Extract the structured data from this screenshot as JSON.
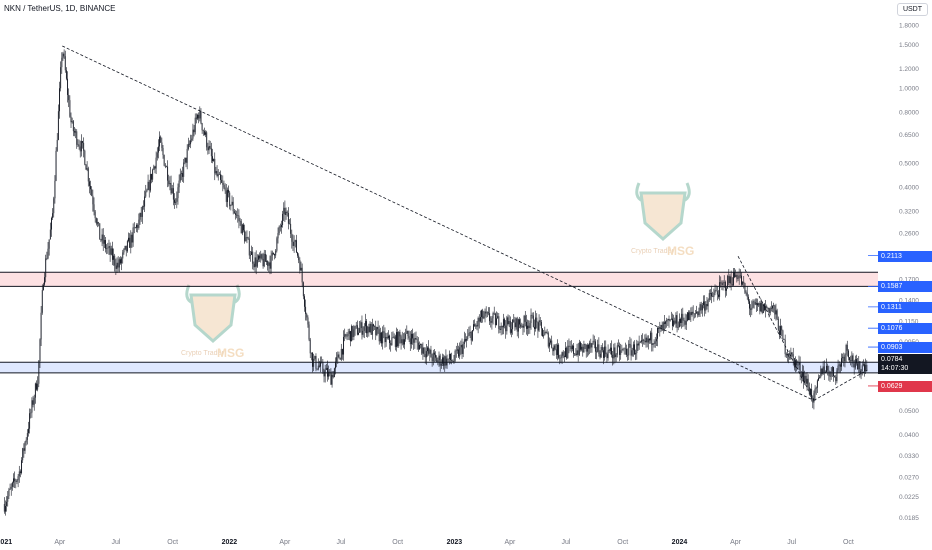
{
  "header": {
    "symbol": "NKN / TetherUS, 1D, BINANCE",
    "unit": "USDT"
  },
  "watermark": {
    "line1": "Crypto",
    "line2": "Trader",
    "brand": "MSG"
  },
  "price_tags": [
    {
      "label": "0.2113",
      "value": 0.2113,
      "color": "#2962ff"
    },
    {
      "label": "0.1587",
      "value": 0.1587,
      "color": "#2962ff"
    },
    {
      "label": "0.1311",
      "value": 0.1311,
      "color": "#2962ff"
    },
    {
      "label": "0.1076",
      "value": 0.1076,
      "color": "#2962ff"
    },
    {
      "label": "0.0903",
      "value": 0.0903,
      "color": "#2962ff"
    },
    {
      "label": "0.0629",
      "value": 0.0629,
      "color": "#e0374b"
    }
  ],
  "current_price": {
    "price": "0.0784",
    "countdown": "14:07:30",
    "value": 0.0784,
    "color": "#131722"
  },
  "chart_data": {
    "type": "candlestick",
    "title": "NKN / TetherUS, 1D, BINANCE",
    "y_scale": "log",
    "ylim": [
      0.0165,
      1.85
    ],
    "grid": false,
    "y_ticks": [
      "1.8000",
      "1.5000",
      "1.2000",
      "1.0000",
      "0.8000",
      "0.6500",
      "0.5000",
      "0.4000",
      "0.3200",
      "0.2600",
      "0.2113",
      "0.1700",
      "0.1587",
      "0.1400",
      "0.1311",
      "0.1150",
      "0.1076",
      "0.0950",
      "0.0903",
      "0.0784",
      "0.0629",
      "0.0500",
      "0.0400",
      "0.0330",
      "0.0270",
      "0.0225",
      "0.0185"
    ],
    "x_ticks": [
      "2021",
      "Apr",
      "Jul",
      "Oct",
      "2022",
      "Apr",
      "Jul",
      "Oct",
      "2023",
      "Apr",
      "Jul",
      "Oct",
      "2024",
      "Apr",
      "Jul",
      "Oct"
    ],
    "price_path": [
      {
        "date": "2021-01-01",
        "price": 0.021
      },
      {
        "date": "2021-01-25",
        "price": 0.028
      },
      {
        "date": "2021-02-10",
        "price": 0.045
      },
      {
        "date": "2021-02-25",
        "price": 0.07
      },
      {
        "date": "2021-03-05",
        "price": 0.17
      },
      {
        "date": "2021-03-20",
        "price": 0.3
      },
      {
        "date": "2021-04-05",
        "price": 1.48
      },
      {
        "date": "2021-04-20",
        "price": 0.7
      },
      {
        "date": "2021-05-10",
        "price": 0.55
      },
      {
        "date": "2021-06-05",
        "price": 0.25
      },
      {
        "date": "2021-07-05",
        "price": 0.19
      },
      {
        "date": "2021-08-10",
        "price": 0.3
      },
      {
        "date": "2021-09-10",
        "price": 0.6
      },
      {
        "date": "2021-10-05",
        "price": 0.35
      },
      {
        "date": "2021-10-25",
        "price": 0.55
      },
      {
        "date": "2021-11-12",
        "price": 0.8
      },
      {
        "date": "2021-12-10",
        "price": 0.45
      },
      {
        "date": "2022-01-15",
        "price": 0.3
      },
      {
        "date": "2022-02-10",
        "price": 0.2
      },
      {
        "date": "2022-03-10",
        "price": 0.2
      },
      {
        "date": "2022-04-01",
        "price": 0.32
      },
      {
        "date": "2022-04-25",
        "price": 0.2
      },
      {
        "date": "2022-05-15",
        "price": 0.08
      },
      {
        "date": "2022-06-15",
        "price": 0.068
      },
      {
        "date": "2022-07-10",
        "price": 0.1
      },
      {
        "date": "2022-08-10",
        "price": 0.11
      },
      {
        "date": "2022-09-15",
        "price": 0.095
      },
      {
        "date": "2022-10-20",
        "price": 0.1
      },
      {
        "date": "2022-12-01",
        "price": 0.08
      },
      {
        "date": "2022-12-31",
        "price": 0.08
      },
      {
        "date": "2023-02-15",
        "price": 0.12
      },
      {
        "date": "2023-04-01",
        "price": 0.11
      },
      {
        "date": "2023-05-10",
        "price": 0.115
      },
      {
        "date": "2023-06-20",
        "price": 0.085
      },
      {
        "date": "2023-08-10",
        "price": 0.09
      },
      {
        "date": "2023-09-15",
        "price": 0.085
      },
      {
        "date": "2023-11-01",
        "price": 0.09
      },
      {
        "date": "2023-12-10",
        "price": 0.11
      },
      {
        "date": "2024-01-20",
        "price": 0.12
      },
      {
        "date": "2024-03-01",
        "price": 0.15
      },
      {
        "date": "2024-04-05",
        "price": 0.18
      },
      {
        "date": "2024-04-25",
        "price": 0.13
      },
      {
        "date": "2024-06-01",
        "price": 0.13
      },
      {
        "date": "2024-06-20",
        "price": 0.09
      },
      {
        "date": "2024-07-20",
        "price": 0.07
      },
      {
        "date": "2024-08-06",
        "price": 0.055
      },
      {
        "date": "2024-08-20",
        "price": 0.075
      },
      {
        "date": "2024-09-10",
        "price": 0.07
      },
      {
        "date": "2024-09-28",
        "price": 0.09
      },
      {
        "date": "2024-10-15",
        "price": 0.073
      },
      {
        "date": "2024-11-01",
        "price": 0.0784
      }
    ],
    "zones": [
      {
        "from": 0.1587,
        "to": 0.181,
        "color": "#f23645"
      },
      {
        "from": 0.071,
        "to": 0.0784,
        "color": "#2962ff"
      }
    ],
    "trendlines": [
      {
        "from": {
          "date": "2021-04-05",
          "price": 1.48
        },
        "to": {
          "date": "2024-08-06",
          "price": 0.055
        }
      },
      {
        "from": {
          "date": "2024-04-05",
          "price": 0.21
        },
        "to": {
          "date": "2024-08-06",
          "price": 0.055
        }
      },
      {
        "from": {
          "date": "2024-08-06",
          "price": 0.055
        },
        "to": {
          "date": "2024-11-01",
          "price": 0.073
        }
      }
    ]
  }
}
